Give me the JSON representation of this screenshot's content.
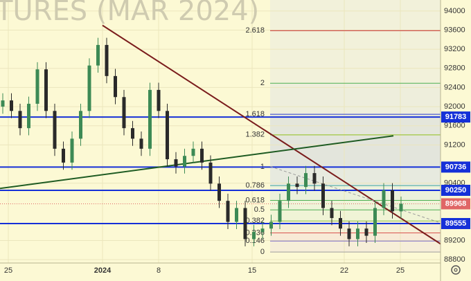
{
  "chart_data": {
    "type": "candlestick",
    "watermark": "TURES (MAR 2024)",
    "up_color": "#3d8a55",
    "down_color": "#2a2a2a",
    "open": [
      92000,
      92130,
      91910,
      91550,
      92060,
      92780,
      91910,
      91120,
      90830,
      91330,
      91910,
      92860,
      93290,
      92640,
      92200,
      91550,
      91330,
      91120,
      92350,
      91910,
      90900,
      90750,
      90970,
      91120,
      90830,
      90390,
      90030,
      89590,
      89880,
      89230,
      89380,
      89450,
      89590,
      90030,
      90390,
      90320,
      90610,
      90390,
      89880,
      89670,
      89450,
      89230,
      89450,
      89300,
      89880,
      90250,
      89810
    ],
    "high": [
      92280,
      92280,
      92060,
      92210,
      92930,
      92930,
      92060,
      91270,
      91480,
      92060,
      93010,
      93440,
      93440,
      92790,
      92350,
      91700,
      91480,
      92500,
      92500,
      92060,
      91050,
      91120,
      91270,
      91270,
      90980,
      90540,
      90180,
      90030,
      90030,
      89530,
      89600,
      89740,
      90180,
      90540,
      90540,
      90760,
      90760,
      90540,
      90030,
      89820,
      89600,
      89600,
      89600,
      90030,
      90400,
      90400,
      90120
    ],
    "low": [
      91850,
      91760,
      91400,
      91400,
      91910,
      91760,
      90970,
      90680,
      90680,
      91180,
      91760,
      92710,
      92490,
      92050,
      91400,
      91180,
      90970,
      90970,
      91760,
      90750,
      90600,
      90600,
      90820,
      90680,
      90240,
      89880,
      89440,
      89440,
      89080,
      89080,
      89230,
      89300,
      89440,
      89880,
      90170,
      90170,
      90240,
      89730,
      89520,
      89300,
      89080,
      89080,
      89150,
      89150,
      89730,
      89660,
      89660
    ],
    "close": [
      92130,
      91910,
      91550,
      92060,
      92780,
      91910,
      91120,
      90830,
      91330,
      91910,
      92860,
      93290,
      92640,
      92200,
      91550,
      91330,
      91120,
      92350,
      91910,
      90900,
      90750,
      90970,
      91120,
      90830,
      90390,
      90030,
      89590,
      89880,
      89230,
      89380,
      89450,
      89590,
      90030,
      90390,
      90320,
      90610,
      90390,
      89880,
      89670,
      89450,
      89230,
      89450,
      89300,
      89880,
      90250,
      89810,
      89970
    ],
    "xlim": [
      -0.32,
      50.56
    ],
    "ylim": [
      88730,
      94230
    ],
    "xticks": [
      {
        "value": 0.64,
        "label": "25"
      },
      {
        "value": 11.52,
        "label": "2024"
      },
      {
        "value": 18,
        "label": "8"
      },
      {
        "value": 28.8,
        "label": "15"
      },
      {
        "value": 39.44,
        "label": "22"
      },
      {
        "value": 45.92,
        "label": "25"
      }
    ],
    "yticks": [
      88800,
      89200,
      90400,
      91200,
      91600,
      92000,
      92400,
      92800,
      93200,
      93600,
      94000
    ],
    "grid": true,
    "price_levels": [
      {
        "value": 91783,
        "color": "#1530d8"
      },
      {
        "value": 90736,
        "color": "#1530d8"
      },
      {
        "value": 90250,
        "color": "#1530d8"
      },
      {
        "value": 89555,
        "color": "#1530d8"
      }
    ],
    "current_price": {
      "value": 89968,
      "color": "#e06666"
    },
    "trendlines": [
      {
        "x": [
          11.52,
          50.56
        ],
        "y": [
          93700,
          89130
        ],
        "color": "#7a1c1c",
        "dashed": false
      },
      {
        "x": [
          -0.32,
          45.12
        ],
        "y": [
          90290,
          91390
        ],
        "color": "#1e5b22",
        "dashed": false
      },
      {
        "x": [
          30.88,
          50.56
        ],
        "y": [
          90750,
          89570
        ],
        "color": "#9a9a9a",
        "dashed": true
      }
    ],
    "fib": {
      "start": 30.88,
      "levels": [
        {
          "ratio": 2.618,
          "value": 93590,
          "color": "#c62828",
          "fill": "#f2f1da"
        },
        {
          "ratio": 2,
          "value": 92490,
          "color": "#4caf50",
          "fill": "#eeeedc"
        },
        {
          "ratio": 1.618,
          "value": 91840,
          "color": "#2d3fd0",
          "fill": "#e4e6db"
        },
        {
          "ratio": 1.382,
          "value": 91410,
          "color": "#8fbf1a",
          "fill": "#e3e5dc"
        },
        {
          "ratio": 1,
          "value": 90740,
          "color": "#9e9e9e",
          "fill": "#e7eadf"
        },
        {
          "ratio": 0.786,
          "value": 90350,
          "color": "#3ba3a3",
          "fill": "#ebf1dc"
        },
        {
          "ratio": 0.618,
          "value": 90040,
          "color": "#4caf50",
          "fill": "#eef4d8"
        },
        {
          "ratio": 0.5,
          "value": 89840,
          "color": "#4caf50",
          "fill": "#f0f4d6"
        },
        {
          "ratio": 0.382,
          "value": 89610,
          "color": "#8bc34a",
          "fill": "#f6efd6"
        },
        {
          "ratio": 0.236,
          "value": 89360,
          "color": "#d9534f",
          "fill": "#f8ead6"
        },
        {
          "ratio": 0.146,
          "value": 89190,
          "color": "#7b68c8",
          "fill": "#f6eed8"
        },
        {
          "ratio": 0,
          "value": 88960,
          "color": "#9e9e9e",
          "fill": "#fcf9d4"
        }
      ]
    }
  }
}
